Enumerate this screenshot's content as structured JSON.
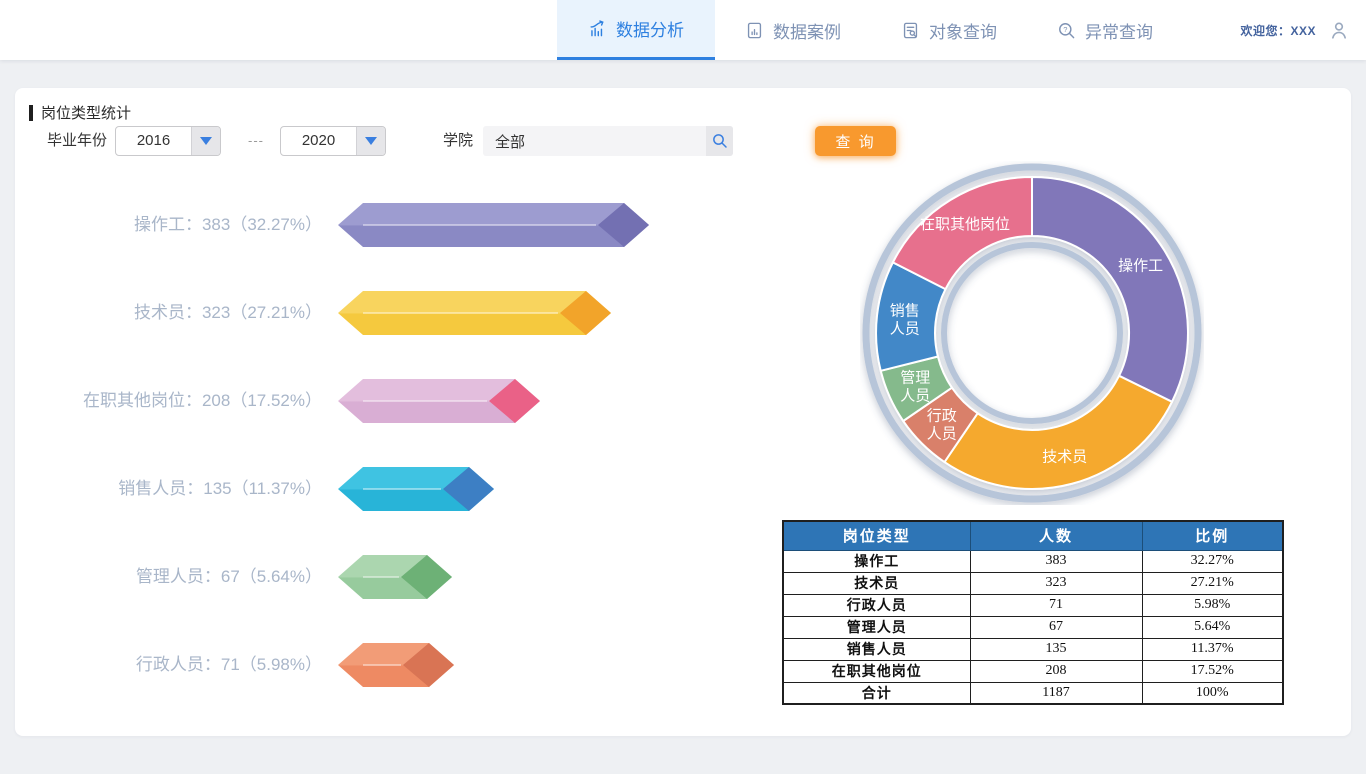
{
  "header": {
    "tabs": [
      {
        "id": "data-analysis",
        "label": "数据分析",
        "icon": "bar-chart-arrow-icon",
        "active": true
      },
      {
        "id": "data-case",
        "label": "数据案例",
        "icon": "document-chart-icon",
        "active": false
      },
      {
        "id": "object-query",
        "label": "对象查询",
        "icon": "document-search-icon",
        "active": false
      },
      {
        "id": "anomaly-query",
        "label": "异常查询",
        "icon": "search-question-icon",
        "active": false
      }
    ],
    "welcome": "欢迎您：XXX",
    "user_icon": "user-icon",
    "accent_color": "#2e80e0"
  },
  "panel": {
    "title": "岗位类型统计"
  },
  "filters": {
    "year_label": "毕业年份",
    "from_value": "2016",
    "separator": "---",
    "to_value": "2020",
    "college_label": "学院",
    "college_value": "全部",
    "search_icon": "search-icon",
    "query_button": "查 询",
    "query_button_color": "#f8992e"
  },
  "chart_data": [
    {
      "type": "bar",
      "orientation": "horizontal",
      "title": "岗位类型统计",
      "categories": [
        "操作工",
        "技术员",
        "在职其他岗位",
        "销售人员",
        "管理人员",
        "行政人员"
      ],
      "values": [
        383,
        323,
        208,
        135,
        67,
        71
      ],
      "percents": [
        32.27,
        27.21,
        17.52,
        11.37,
        5.64,
        5.98
      ],
      "total": 1187,
      "colors": [
        {
          "light": "#9d9cd0",
          "base": "#8a89c4",
          "tip": "#7370b2"
        },
        {
          "light": "#f8d45e",
          "base": "#f5c93e",
          "tip": "#f2a42a"
        },
        {
          "light": "#e3bedd",
          "base": "#d9aed4",
          "tip": "#ea6187"
        },
        {
          "light": "#3fc3e2",
          "base": "#28b4d8",
          "tip": "#3d7fc4"
        },
        {
          "light": "#abd6af",
          "base": "#97cb9d",
          "tip": "#6db176"
        },
        {
          "light": "#f29c77",
          "base": "#ee8a63",
          "tip": "#d97454"
        }
      ]
    },
    {
      "type": "pie",
      "subtype": "donut",
      "start_angle_deg": -90,
      "direction": "clockwise",
      "total": 1187,
      "ring_color": "#b7c5d9",
      "label_color": "#ffffff",
      "segments": [
        {
          "label": "操作工",
          "lines": [
            "操作工"
          ],
          "value": 383,
          "color": "#8177b9"
        },
        {
          "label": "技术员",
          "lines": [
            "技术员"
          ],
          "value": 323,
          "color": "#f5a92f"
        },
        {
          "label": "行政人员",
          "lines": [
            "行政",
            "人员"
          ],
          "value": 71,
          "color": "#d9806a"
        },
        {
          "label": "管理人员",
          "lines": [
            "管理",
            "人员"
          ],
          "value": 67,
          "color": "#85ba8c"
        },
        {
          "label": "销售人员",
          "lines": [
            "销售",
            "人员"
          ],
          "value": 135,
          "color": "#4288c8"
        },
        {
          "label": "在职其他岗位",
          "lines": [
            "在职其他岗位"
          ],
          "value": 208,
          "color": "#e76f8d"
        }
      ]
    }
  ],
  "table": {
    "headers": [
      "岗位类型",
      "人数",
      "比例"
    ],
    "header_bg": "#2e75b6",
    "rows": [
      [
        "操作工",
        "383",
        "32.27%"
      ],
      [
        "技术员",
        "323",
        "27.21%"
      ],
      [
        "行政人员",
        "71",
        "5.98%"
      ],
      [
        "管理人员",
        "67",
        "5.64%"
      ],
      [
        "销售人员",
        "135",
        "11.37%"
      ],
      [
        "在职其他岗位",
        "208",
        "17.52%"
      ],
      [
        "合计",
        "1187",
        "100%"
      ]
    ]
  }
}
